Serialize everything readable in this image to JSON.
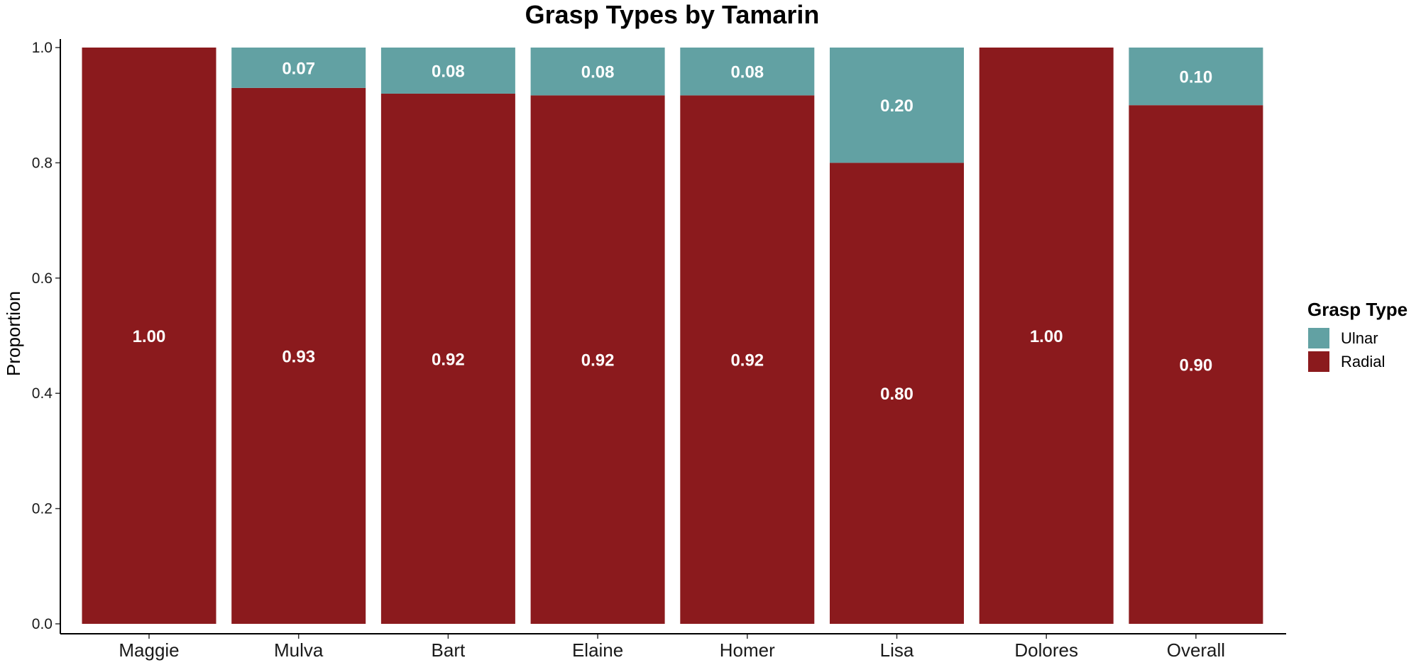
{
  "chart_data": {
    "type": "bar",
    "stacked": true,
    "title": "Grasp Types by Tamarin",
    "xlabel": "",
    "ylabel": "Proportion",
    "ylim": [
      0,
      1.0
    ],
    "yticks": [
      "0.0",
      "0.2",
      "0.4",
      "0.6",
      "0.8",
      "1.0"
    ],
    "grid": false,
    "legend_position": "right",
    "legend_title": "Grasp Type",
    "categories": [
      "Maggie",
      "Mulva",
      "Bart",
      "Elaine",
      "Homer",
      "Lisa",
      "Dolores",
      "Overall"
    ],
    "series": [
      {
        "name": "Radial",
        "color": "#8B1A1D",
        "values": [
          1.0,
          0.93,
          0.92,
          0.917,
          0.917,
          0.8,
          1.0,
          0.9
        ],
        "labels": [
          "1.00",
          "0.93",
          "0.92",
          "0.92",
          "0.92",
          "0.80",
          "1.00",
          "0.90"
        ]
      },
      {
        "name": "Ulnar",
        "color": "#62A1A3",
        "values": [
          0.0,
          0.07,
          0.08,
          0.083,
          0.083,
          0.2,
          0.0,
          0.1
        ],
        "labels": [
          "",
          "0.07",
          "0.08",
          "0.08",
          "0.08",
          "0.20",
          "",
          "0.10"
        ]
      }
    ],
    "legend_order": [
      "Ulnar",
      "Radial"
    ]
  }
}
